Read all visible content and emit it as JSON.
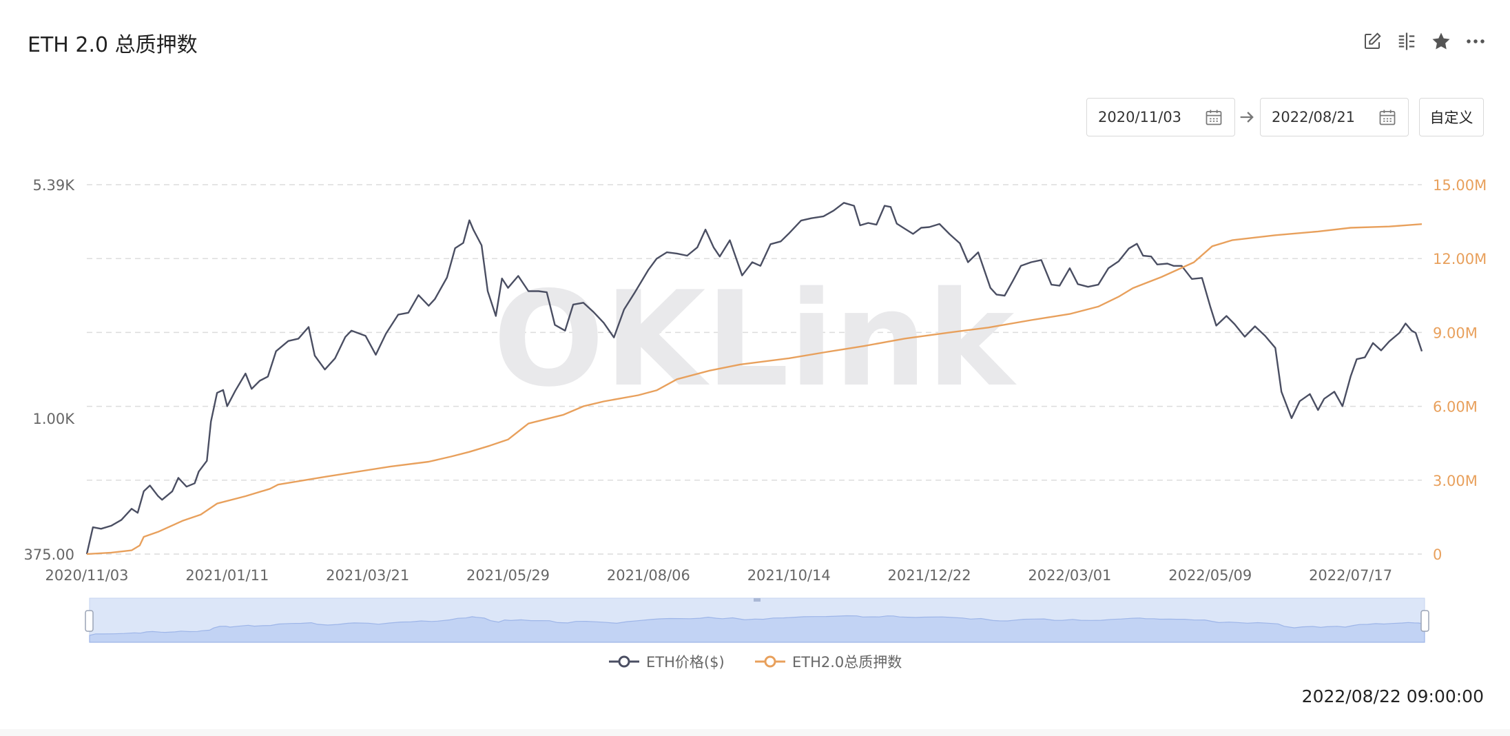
{
  "header": {
    "title": "ETH 2.0 总质押数"
  },
  "toolbar": {
    "icons": [
      "edit-icon",
      "compare-icon",
      "star-icon",
      "more-icon"
    ]
  },
  "date_range": {
    "start": "2020/11/03",
    "end": "2022/08/21",
    "custom_label": "自定义"
  },
  "watermark": "OKLink",
  "timestamp": "2022/08/22 09:00:00",
  "colors": {
    "price": "#4a4e62",
    "staked": "#e8a05c",
    "navigator_fill": "#dce6f8",
    "navigator_line": "#9db5e8"
  },
  "chart_data": {
    "type": "line",
    "title": "",
    "x_ticks": [
      "2020/11/03",
      "2021/01/11",
      "2021/03/21",
      "2021/05/29",
      "2021/08/06",
      "2021/10/14",
      "2021/12/22",
      "2022/03/01",
      "2022/05/09",
      "2022/07/17"
    ],
    "x_range": [
      "2020/11/03",
      "2022/08/21"
    ],
    "y_left": {
      "label": "",
      "scale": "log",
      "ticks": [
        "375.00",
        "1.00K",
        "5.39K"
      ],
      "range": [
        375,
        5390
      ]
    },
    "y_right": {
      "label": "",
      "scale": "linear",
      "ticks": [
        "0",
        "3.00M",
        "6.00M",
        "9.00M",
        "12.00M",
        "15.00M"
      ],
      "range": [
        0,
        15000000
      ]
    },
    "grid": true,
    "legend": "bottom-center",
    "series": [
      {
        "name": "ETH价格($)",
        "axis": "left",
        "points": [
          [
            "2020-11-03",
            375
          ],
          [
            "2020-11-06",
            455
          ],
          [
            "2020-11-10",
            450
          ],
          [
            "2020-11-15",
            460
          ],
          [
            "2020-11-20",
            480
          ],
          [
            "2020-11-25",
            520
          ],
          [
            "2020-11-28",
            505
          ],
          [
            "2020-12-01",
            590
          ],
          [
            "2020-12-04",
            615
          ],
          [
            "2020-12-08",
            570
          ],
          [
            "2020-12-10",
            555
          ],
          [
            "2020-12-15",
            590
          ],
          [
            "2020-12-18",
            650
          ],
          [
            "2020-12-22",
            610
          ],
          [
            "2020-12-26",
            625
          ],
          [
            "2020-12-28",
            680
          ],
          [
            "2021-01-01",
            735
          ],
          [
            "2021-01-03",
            975
          ],
          [
            "2021-01-06",
            1200
          ],
          [
            "2021-01-09",
            1225
          ],
          [
            "2021-01-11",
            1090
          ],
          [
            "2021-01-15",
            1220
          ],
          [
            "2021-01-20",
            1380
          ],
          [
            "2021-01-23",
            1235
          ],
          [
            "2021-01-27",
            1310
          ],
          [
            "2021-01-31",
            1350
          ],
          [
            "2021-02-04",
            1620
          ],
          [
            "2021-02-10",
            1745
          ],
          [
            "2021-02-15",
            1775
          ],
          [
            "2021-02-20",
            1930
          ],
          [
            "2021-02-23",
            1570
          ],
          [
            "2021-02-28",
            1420
          ],
          [
            "2021-03-05",
            1540
          ],
          [
            "2021-03-10",
            1795
          ],
          [
            "2021-03-13",
            1880
          ],
          [
            "2021-03-20",
            1810
          ],
          [
            "2021-03-25",
            1580
          ],
          [
            "2021-03-30",
            1840
          ],
          [
            "2021-04-05",
            2110
          ],
          [
            "2021-04-10",
            2140
          ],
          [
            "2021-04-15",
            2430
          ],
          [
            "2021-04-20",
            2250
          ],
          [
            "2021-04-23",
            2360
          ],
          [
            "2021-04-29",
            2760
          ],
          [
            "2021-05-03",
            3410
          ],
          [
            "2021-05-07",
            3540
          ],
          [
            "2021-05-10",
            4170
          ],
          [
            "2021-05-12",
            3890
          ],
          [
            "2021-05-16",
            3480
          ],
          [
            "2021-05-19",
            2500
          ],
          [
            "2021-05-23",
            2090
          ],
          [
            "2021-05-26",
            2740
          ],
          [
            "2021-05-29",
            2560
          ],
          [
            "2021-06-03",
            2790
          ],
          [
            "2021-06-08",
            2500
          ],
          [
            "2021-06-13",
            2500
          ],
          [
            "2021-06-17",
            2480
          ],
          [
            "2021-06-21",
            1960
          ],
          [
            "2021-06-26",
            1880
          ],
          [
            "2021-06-30",
            2270
          ],
          [
            "2021-07-05",
            2300
          ],
          [
            "2021-07-10",
            2150
          ],
          [
            "2021-07-15",
            1990
          ],
          [
            "2021-07-20",
            1790
          ],
          [
            "2021-07-25",
            2190
          ],
          [
            "2021-07-30",
            2460
          ],
          [
            "2021-08-06",
            2920
          ],
          [
            "2021-08-10",
            3160
          ],
          [
            "2021-08-15",
            3310
          ],
          [
            "2021-08-20",
            3280
          ],
          [
            "2021-08-25",
            3230
          ],
          [
            "2021-08-30",
            3430
          ],
          [
            "2021-09-03",
            3900
          ],
          [
            "2021-09-07",
            3430
          ],
          [
            "2021-09-10",
            3210
          ],
          [
            "2021-09-15",
            3610
          ],
          [
            "2021-09-21",
            2800
          ],
          [
            "2021-09-26",
            3080
          ],
          [
            "2021-09-30",
            3000
          ],
          [
            "2021-10-05",
            3510
          ],
          [
            "2021-10-10",
            3580
          ],
          [
            "2021-10-14",
            3790
          ],
          [
            "2021-10-20",
            4160
          ],
          [
            "2021-10-25",
            4230
          ],
          [
            "2021-10-31",
            4290
          ],
          [
            "2021-11-05",
            4470
          ],
          [
            "2021-11-10",
            4730
          ],
          [
            "2021-11-15",
            4630
          ],
          [
            "2021-11-18",
            4020
          ],
          [
            "2021-11-22",
            4090
          ],
          [
            "2021-11-26",
            4040
          ],
          [
            "2021-11-30",
            4630
          ],
          [
            "2021-12-03",
            4590
          ],
          [
            "2021-12-06",
            4070
          ],
          [
            "2021-12-10",
            3920
          ],
          [
            "2021-12-14",
            3780
          ],
          [
            "2021-12-18",
            3950
          ],
          [
            "2021-12-22",
            3970
          ],
          [
            "2021-12-27",
            4060
          ],
          [
            "2022-01-01",
            3770
          ],
          [
            "2022-01-06",
            3530
          ],
          [
            "2022-01-10",
            3080
          ],
          [
            "2022-01-15",
            3310
          ],
          [
            "2022-01-21",
            2560
          ],
          [
            "2022-01-24",
            2440
          ],
          [
            "2022-01-28",
            2420
          ],
          [
            "2022-02-01",
            2690
          ],
          [
            "2022-02-05",
            3000
          ],
          [
            "2022-02-10",
            3080
          ],
          [
            "2022-02-15",
            3130
          ],
          [
            "2022-02-20",
            2620
          ],
          [
            "2022-02-24",
            2600
          ],
          [
            "2022-03-01",
            2950
          ],
          [
            "2022-03-05",
            2630
          ],
          [
            "2022-03-10",
            2580
          ],
          [
            "2022-03-15",
            2620
          ],
          [
            "2022-03-20",
            2950
          ],
          [
            "2022-03-25",
            3100
          ],
          [
            "2022-03-30",
            3400
          ],
          [
            "2022-04-03",
            3520
          ],
          [
            "2022-04-06",
            3230
          ],
          [
            "2022-04-10",
            3210
          ],
          [
            "2022-04-13",
            3030
          ],
          [
            "2022-04-18",
            3050
          ],
          [
            "2022-04-21",
            3000
          ],
          [
            "2022-04-25",
            3000
          ],
          [
            "2022-04-30",
            2730
          ],
          [
            "2022-05-05",
            2750
          ],
          [
            "2022-05-09",
            2240
          ],
          [
            "2022-05-12",
            1950
          ],
          [
            "2022-05-17",
            2090
          ],
          [
            "2022-05-21",
            1970
          ],
          [
            "2022-05-26",
            1800
          ],
          [
            "2022-05-31",
            1940
          ],
          [
            "2022-06-05",
            1810
          ],
          [
            "2022-06-10",
            1660
          ],
          [
            "2022-06-13",
            1210
          ],
          [
            "2022-06-18",
            1000
          ],
          [
            "2022-06-22",
            1130
          ],
          [
            "2022-06-27",
            1190
          ],
          [
            "2022-07-01",
            1060
          ],
          [
            "2022-07-04",
            1150
          ],
          [
            "2022-07-09",
            1210
          ],
          [
            "2022-07-13",
            1090
          ],
          [
            "2022-07-17",
            1350
          ],
          [
            "2022-07-20",
            1530
          ],
          [
            "2022-07-24",
            1550
          ],
          [
            "2022-07-28",
            1720
          ],
          [
            "2022-08-01",
            1630
          ],
          [
            "2022-08-05",
            1740
          ],
          [
            "2022-08-10",
            1850
          ],
          [
            "2022-08-13",
            1980
          ],
          [
            "2022-08-16",
            1880
          ],
          [
            "2022-08-18",
            1850
          ],
          [
            "2022-08-21",
            1620
          ]
        ]
      },
      {
        "name": "ETH2.0总质押数",
        "axis": "right",
        "points": [
          [
            "2020-11-03",
            0
          ],
          [
            "2020-11-15",
            60000
          ],
          [
            "2020-11-25",
            150000
          ],
          [
            "2020-11-29",
            350000
          ],
          [
            "2020-12-01",
            700000
          ],
          [
            "2020-12-08",
            900000
          ],
          [
            "2020-12-20",
            1350000
          ],
          [
            "2020-12-29",
            1600000
          ],
          [
            "2021-01-06",
            2050000
          ],
          [
            "2021-01-20",
            2350000
          ],
          [
            "2021-02-01",
            2650000
          ],
          [
            "2021-02-05",
            2820000
          ],
          [
            "2021-03-01",
            3150000
          ],
          [
            "2021-04-01",
            3550000
          ],
          [
            "2021-04-20",
            3750000
          ],
          [
            "2021-05-01",
            3960000
          ],
          [
            "2021-05-10",
            4150000
          ],
          [
            "2021-05-20",
            4400000
          ],
          [
            "2021-05-29",
            4650000
          ],
          [
            "2021-06-08",
            5300000
          ],
          [
            "2021-06-25",
            5650000
          ],
          [
            "2021-07-05",
            6000000
          ],
          [
            "2021-07-15",
            6200000
          ],
          [
            "2021-08-01",
            6450000
          ],
          [
            "2021-08-10",
            6650000
          ],
          [
            "2021-08-20",
            7100000
          ],
          [
            "2021-09-05",
            7450000
          ],
          [
            "2021-09-20",
            7700000
          ],
          [
            "2021-10-14",
            7950000
          ],
          [
            "2021-11-01",
            8200000
          ],
          [
            "2021-11-20",
            8450000
          ],
          [
            "2021-12-10",
            8750000
          ],
          [
            "2022-01-01",
            9000000
          ],
          [
            "2022-01-20",
            9200000
          ],
          [
            "2022-02-10",
            9500000
          ],
          [
            "2022-03-01",
            9750000
          ],
          [
            "2022-03-15",
            10050000
          ],
          [
            "2022-03-25",
            10450000
          ],
          [
            "2022-04-01",
            10800000
          ],
          [
            "2022-04-15",
            11250000
          ],
          [
            "2022-05-01",
            11850000
          ],
          [
            "2022-05-10",
            12500000
          ],
          [
            "2022-05-20",
            12750000
          ],
          [
            "2022-06-10",
            12950000
          ],
          [
            "2022-07-01",
            13100000
          ],
          [
            "2022-07-17",
            13250000
          ],
          [
            "2022-08-05",
            13300000
          ],
          [
            "2022-08-21",
            13400000
          ]
        ]
      }
    ]
  }
}
